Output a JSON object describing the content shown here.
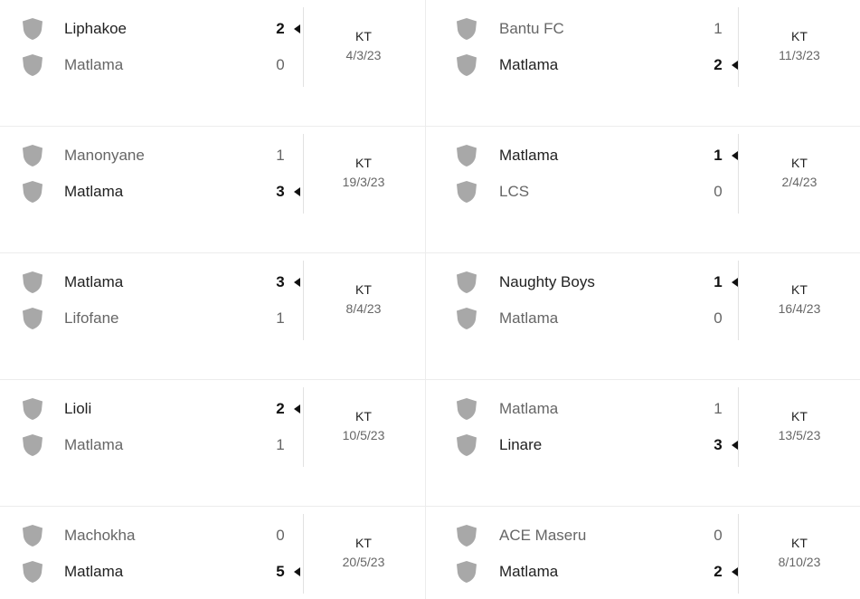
{
  "colors": {
    "shield": "#a8a8a8",
    "winner_text": "#222222",
    "loser_text": "#666666",
    "divider": "#ececec"
  },
  "icons": {
    "team": "shield-icon",
    "winner_marker": "winner-arrow-icon"
  },
  "left_matches": [
    {
      "home": {
        "name": "Liphakoe",
        "score": "2",
        "winner": true
      },
      "away": {
        "name": "Matlama",
        "score": "0",
        "winner": false
      },
      "status": "KT",
      "date": "4/3/23"
    },
    {
      "home": {
        "name": "Manonyane",
        "score": "1",
        "winner": false
      },
      "away": {
        "name": "Matlama",
        "score": "3",
        "winner": true
      },
      "status": "KT",
      "date": "19/3/23"
    },
    {
      "home": {
        "name": "Matlama",
        "score": "3",
        "winner": true
      },
      "away": {
        "name": "Lifofane",
        "score": "1",
        "winner": false
      },
      "status": "KT",
      "date": "8/4/23"
    },
    {
      "home": {
        "name": "Lioli",
        "score": "2",
        "winner": true
      },
      "away": {
        "name": "Matlama",
        "score": "1",
        "winner": false
      },
      "status": "KT",
      "date": "10/5/23"
    },
    {
      "home": {
        "name": "Machokha",
        "score": "0",
        "winner": false
      },
      "away": {
        "name": "Matlama",
        "score": "5",
        "winner": true
      },
      "status": "KT",
      "date": "20/5/23"
    }
  ],
  "right_matches": [
    {
      "home": {
        "name": "Bantu FC",
        "score": "1",
        "winner": false
      },
      "away": {
        "name": "Matlama",
        "score": "2",
        "winner": true
      },
      "status": "KT",
      "date": "11/3/23"
    },
    {
      "home": {
        "name": "Matlama",
        "score": "1",
        "winner": true
      },
      "away": {
        "name": "LCS",
        "score": "0",
        "winner": false
      },
      "status": "KT",
      "date": "2/4/23"
    },
    {
      "home": {
        "name": "Naughty Boys",
        "score": "1",
        "winner": true
      },
      "away": {
        "name": "Matlama",
        "score": "0",
        "winner": false
      },
      "status": "KT",
      "date": "16/4/23"
    },
    {
      "home": {
        "name": "Matlama",
        "score": "1",
        "winner": false
      },
      "away": {
        "name": "Linare",
        "score": "3",
        "winner": true
      },
      "status": "KT",
      "date": "13/5/23"
    },
    {
      "home": {
        "name": "ACE Maseru",
        "score": "0",
        "winner": false
      },
      "away": {
        "name": "Matlama",
        "score": "2",
        "winner": true
      },
      "status": "KT",
      "date": "8/10/23"
    }
  ]
}
